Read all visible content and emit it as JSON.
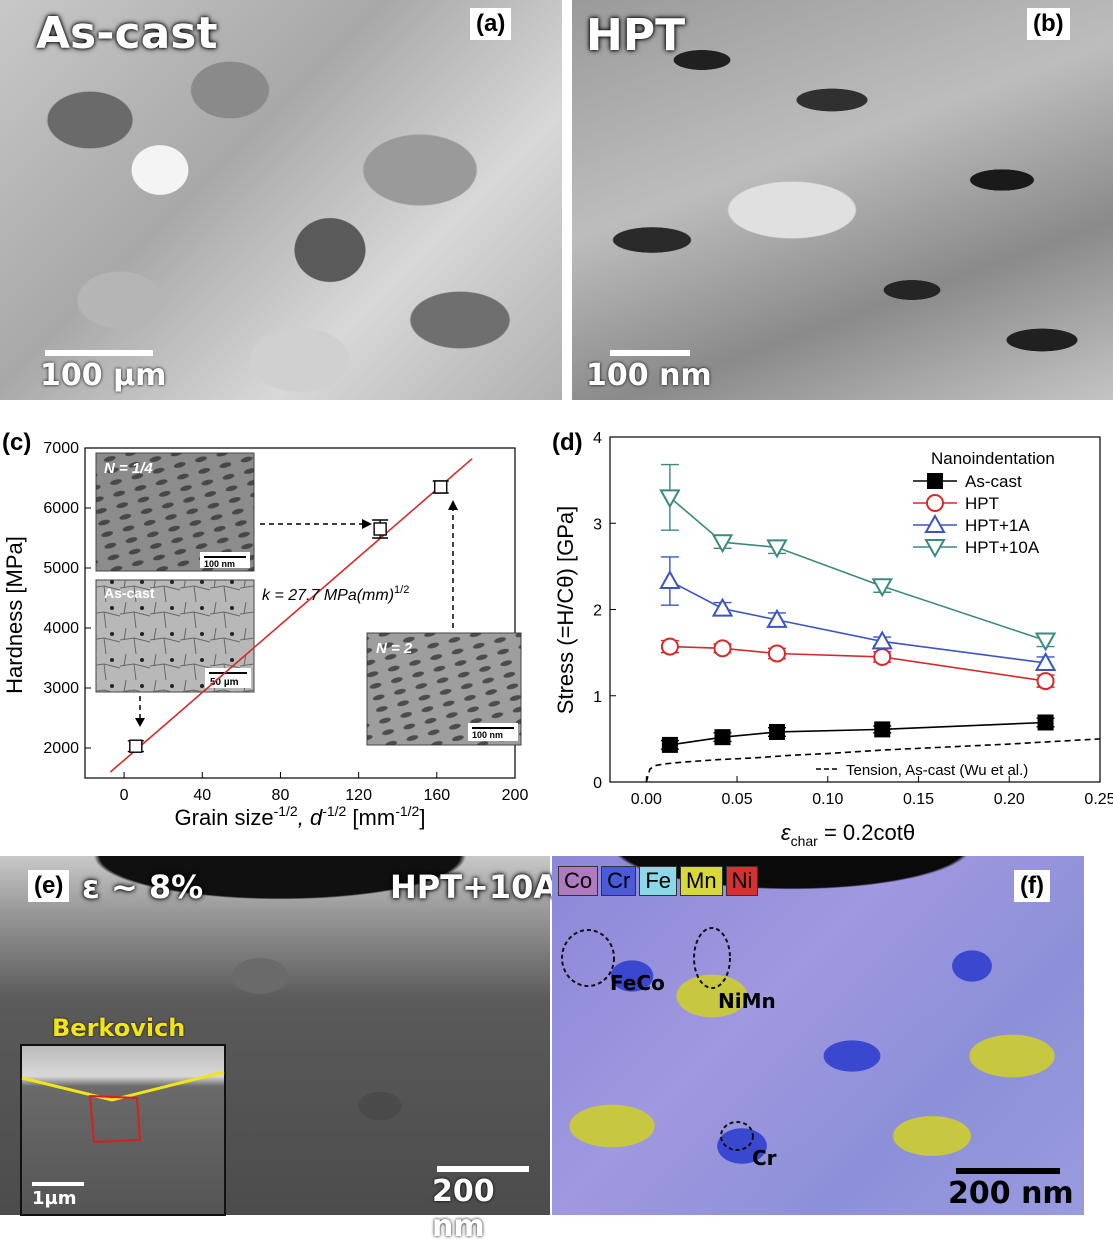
{
  "panels": {
    "a": {
      "letter": "(a)",
      "label": "As-cast",
      "scale": "100 µm"
    },
    "b": {
      "letter": "(b)",
      "label": "HPT",
      "scale": "100 nm"
    },
    "c": {
      "letter": "(c)"
    },
    "d": {
      "letter": "(d)"
    },
    "e": {
      "letter": "(e)",
      "strain": "ε ~ 8%",
      "label": "HPT+10A",
      "scale": "200 nm",
      "inset_label": "Berkovich",
      "inset_scale": "1µm"
    },
    "f": {
      "letter": "(f)",
      "scale": "200 nm",
      "elements": [
        {
          "name": "Co",
          "color": "#b07ac0"
        },
        {
          "name": "Cr",
          "color": "#4a5ad8"
        },
        {
          "name": "Fe",
          "color": "#8ad8e8"
        },
        {
          "name": "Mn",
          "color": "#d8d83a"
        },
        {
          "name": "Ni",
          "color": "#d83030"
        }
      ],
      "regions": [
        "FeCo",
        "NiMn",
        "Cr"
      ]
    }
  },
  "chart_data": [
    {
      "type": "line",
      "xlabel_main": "Grain size",
      "xlabel_sup1": "-1/2",
      "xlabel_d": ", d",
      "xlabel_sup2": "-1/2",
      "xlabel_unit": " [mm",
      "xlabel_sup3": "-1/2",
      "xlabel_end": "]",
      "ylabel": "Hardness [MPa]",
      "xlim": [
        -20,
        200
      ],
      "ylim": [
        1500,
        7000
      ],
      "xticks": [
        0,
        40,
        80,
        120,
        160,
        200
      ],
      "yticks": [
        2000,
        3000,
        4000,
        5000,
        6000,
        7000
      ],
      "fit_line": {
        "x": [
          -7,
          178
        ],
        "y": [
          1600,
          6820
        ]
      },
      "fit_label": "k = 27.7 MPa(mm)",
      "fit_label_sup": "1/2",
      "points": [
        {
          "x": 6,
          "y": 2030,
          "err": 90
        },
        {
          "x": 131,
          "y": 5650,
          "err": 150
        },
        {
          "x": 162,
          "y": 6350,
          "err": 100
        }
      ],
      "insets": [
        {
          "label": "N = 1/4",
          "scale": "100 nm"
        },
        {
          "label": "As-cast",
          "scale": "50 µm"
        },
        {
          "label": "N = 2",
          "scale": "100 nm"
        }
      ],
      "color": "#d42a2a"
    },
    {
      "type": "line",
      "xlabel_eps": "ε",
      "xlabel_sub": "char",
      "xlabel_rest": " = 0.2cotθ",
      "ylabel": "Stress (=H/Cθ) [GPa]",
      "xlim": [
        -0.02,
        0.25
      ],
      "ylim": [
        0,
        4
      ],
      "xticks": [
        0.0,
        0.05,
        0.1,
        0.15,
        0.2,
        0.25
      ],
      "xtick_labels": [
        "0.00",
        "0.05",
        "0.10",
        "0.15",
        "0.20",
        "0.25"
      ],
      "yticks": [
        0,
        1,
        2,
        3,
        4
      ],
      "legend_title": "Nanoindentation",
      "legend_position": "top-right",
      "x": [
        0.013,
        0.042,
        0.072,
        0.13,
        0.22
      ],
      "series": [
        {
          "name": "As-cast",
          "marker": "square",
          "color": "#000000",
          "values": [
            0.43,
            0.52,
            0.58,
            0.61,
            0.69
          ],
          "err": [
            0.05,
            0.05,
            0.05,
            0.04,
            0.05
          ]
        },
        {
          "name": "HPT",
          "marker": "circle",
          "color": "#d42a2a",
          "values": [
            1.57,
            1.55,
            1.49,
            1.45,
            1.17
          ],
          "err": [
            0.07,
            0.05,
            0.06,
            0.06,
            0.07
          ]
        },
        {
          "name": "HPT+1A",
          "marker": "triangle-up",
          "color": "#3a55c0",
          "values": [
            2.33,
            2.01,
            1.88,
            1.63,
            1.38
          ],
          "err": [
            0.28,
            0.07,
            0.08,
            0.05,
            0.07
          ]
        },
        {
          "name": "HPT+10A",
          "marker": "triangle-down",
          "color": "#3a8a80",
          "values": [
            3.3,
            2.78,
            2.72,
            2.27,
            1.64
          ],
          "err": [
            0.38,
            0.07,
            0.07,
            0.07,
            0.07
          ]
        }
      ],
      "tension": {
        "name": "Tension, As-cast (Wu et al.)",
        "x": [
          0.0,
          0.002,
          0.005,
          0.01,
          0.02,
          0.04,
          0.06,
          0.08,
          0.1,
          0.13,
          0.16,
          0.2,
          0.25
        ],
        "y": [
          0.0,
          0.15,
          0.19,
          0.21,
          0.23,
          0.26,
          0.28,
          0.31,
          0.33,
          0.37,
          0.4,
          0.44,
          0.5
        ]
      }
    }
  ]
}
